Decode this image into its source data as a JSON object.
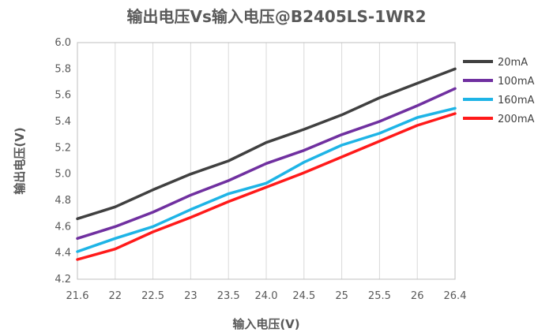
{
  "chart_data": {
    "type": "line",
    "title": "输出电压Vs输入电压@B2405LS-1WR2",
    "xlabel": "输入电压(V)",
    "ylabel": "输出电压(V)",
    "categories": [
      "21.6",
      "22",
      "22.5",
      "23",
      "23.5",
      "24.0",
      "24.5",
      "25",
      "25.5",
      "26",
      "26.4"
    ],
    "ylim": [
      4.2,
      6.0
    ],
    "yticks": [
      "4.2",
      "4.4",
      "4.6",
      "4.8",
      "5.0",
      "5.2",
      "5.4",
      "5.6",
      "5.8",
      "6.0"
    ],
    "grid": "vertical",
    "legend": "right",
    "series": [
      {
        "name": "20mA",
        "color": "#404040",
        "values": [
          4.66,
          4.75,
          4.88,
          5.0,
          5.1,
          5.24,
          5.34,
          5.45,
          5.58,
          5.69,
          5.8
        ]
      },
      {
        "name": "100mA",
        "color": "#7030a0",
        "values": [
          4.51,
          4.6,
          4.71,
          4.84,
          4.95,
          5.08,
          5.18,
          5.3,
          5.4,
          5.52,
          5.65
        ]
      },
      {
        "name": "160mA",
        "color": "#1eb4e6",
        "values": [
          4.41,
          4.51,
          4.6,
          4.73,
          4.85,
          4.93,
          5.09,
          5.22,
          5.31,
          5.43,
          5.5
        ]
      },
      {
        "name": "200mA",
        "color": "#ff1a1a",
        "values": [
          4.35,
          4.43,
          4.56,
          4.67,
          4.79,
          4.9,
          5.01,
          5.13,
          5.25,
          5.37,
          5.46
        ]
      }
    ]
  }
}
